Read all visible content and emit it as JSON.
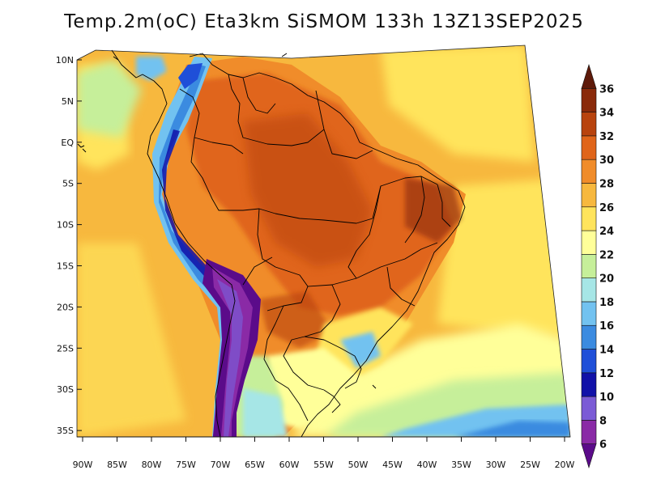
{
  "title": "Temp.2m(oC) Eta3km SiSMOM 133h 13Z13SEP2025",
  "lat_labels": [
    "10N",
    "5N",
    "EQ",
    "5S",
    "10S",
    "15S",
    "20S",
    "25S",
    "30S",
    "35S"
  ],
  "lon_labels": [
    "90W",
    "85W",
    "80W",
    "75W",
    "70W",
    "65W",
    "60W",
    "55W",
    "50W",
    "45W",
    "40W",
    "35W",
    "30W",
    "25W",
    "20W"
  ],
  "colorbar": {
    "labels": [
      "6",
      "8",
      "10",
      "12",
      "14",
      "16",
      "18",
      "20",
      "22",
      "24",
      "26",
      "28",
      "30",
      "32",
      "34",
      "36"
    ],
    "colors": [
      "#5b0b8a",
      "#8a2aa6",
      "#7b5bd6",
      "#1111a8",
      "#1f4fd8",
      "#3b8be0",
      "#72c2f0",
      "#a6e6e6",
      "#c6ef9a",
      "#ffff99",
      "#ffe45c",
      "#f7b83e",
      "#f08c2a",
      "#e0651a",
      "#b8430e",
      "#8a2a0a",
      "#5e1a0a"
    ]
  }
}
